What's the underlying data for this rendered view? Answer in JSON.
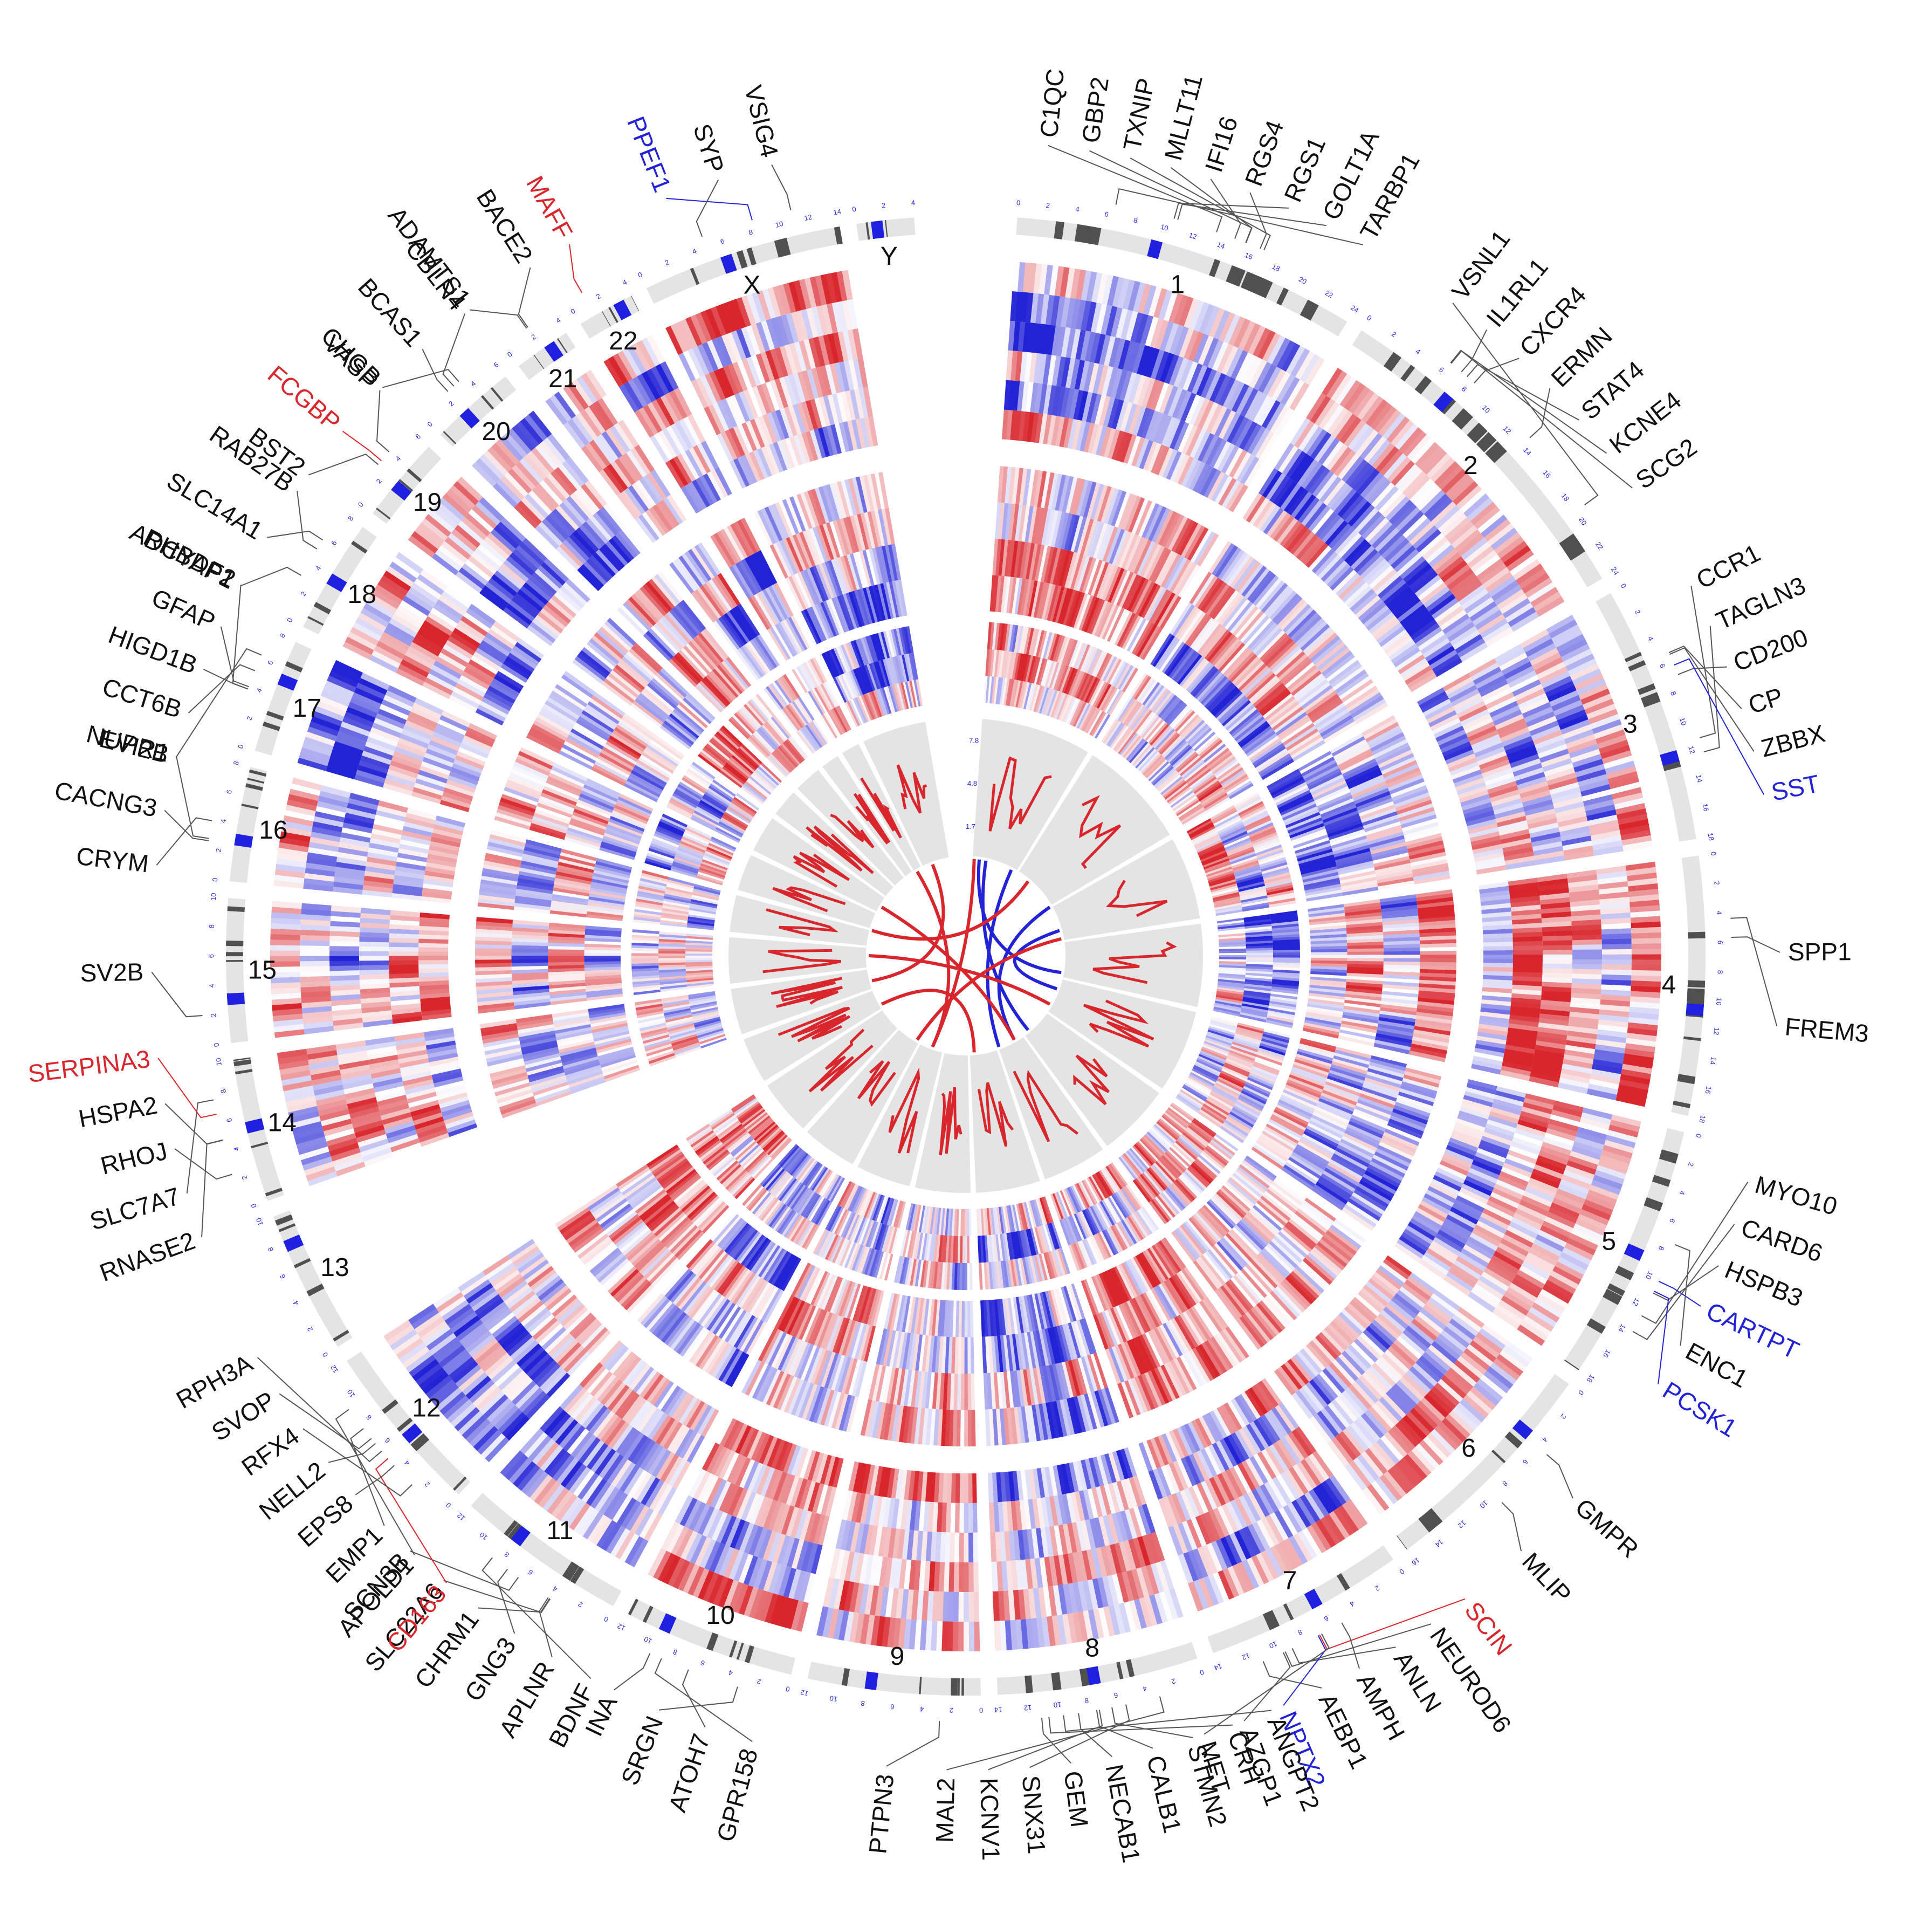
{
  "colors": {
    "up": "#d9262c",
    "down": "#2222d6",
    "neutral_gene": "#111111",
    "track_bg": "#e4e4e4",
    "band_dark": "#505050",
    "centromere": "#2020e0"
  },
  "chromosomes": [
    {
      "name": "1",
      "size": 24
    },
    {
      "name": "2",
      "size": 24
    },
    {
      "name": "3",
      "size": 18
    },
    {
      "name": "4",
      "size": 18
    },
    {
      "name": "5",
      "size": 18
    },
    {
      "name": "6",
      "size": 16
    },
    {
      "name": "7",
      "size": 14
    },
    {
      "name": "8",
      "size": 14
    },
    {
      "name": "9",
      "size": 12
    },
    {
      "name": "10",
      "size": 12
    },
    {
      "name": "11",
      "size": 12
    },
    {
      "name": "12",
      "size": 12
    },
    {
      "name": "13",
      "size": 10
    },
    {
      "name": "14",
      "size": 10
    },
    {
      "name": "15",
      "size": 10
    },
    {
      "name": "16",
      "size": 8
    },
    {
      "name": "17",
      "size": 8
    },
    {
      "name": "18",
      "size": 8
    },
    {
      "name": "19",
      "size": 6
    },
    {
      "name": "20",
      "size": 6
    },
    {
      "name": "21",
      "size": 4
    },
    {
      "name": "22",
      "size": 4
    },
    {
      "name": "X",
      "size": 14
    },
    {
      "name": "Y",
      "size": 4
    }
  ],
  "gene_labels": [
    {
      "chr": "1",
      "genes": [
        {
          "name": "C1QC",
          "dir": "none"
        },
        {
          "name": "GBP2",
          "dir": "none"
        },
        {
          "name": "TXNIP",
          "dir": "none"
        },
        {
          "name": "MLLT11",
          "dir": "none"
        },
        {
          "name": "IFI16",
          "dir": "none"
        },
        {
          "name": "RGS4",
          "dir": "none"
        },
        {
          "name": "RGS1",
          "dir": "none"
        },
        {
          "name": "GOLT1A",
          "dir": "none"
        },
        {
          "name": "TARBP1",
          "dir": "none"
        }
      ]
    },
    {
      "chr": "2",
      "genes": [
        {
          "name": "VSNL1",
          "dir": "none"
        },
        {
          "name": "IL1RL1",
          "dir": "none"
        },
        {
          "name": "CXCR4",
          "dir": "none"
        },
        {
          "name": "ERMN",
          "dir": "none"
        },
        {
          "name": "STAT4",
          "dir": "none"
        },
        {
          "name": "KCNE4",
          "dir": "none"
        },
        {
          "name": "SCG2",
          "dir": "none"
        }
      ]
    },
    {
      "chr": "3",
      "genes": [
        {
          "name": "CCR1",
          "dir": "none"
        },
        {
          "name": "TAGLN3",
          "dir": "none"
        },
        {
          "name": "CD200",
          "dir": "none"
        },
        {
          "name": "CP",
          "dir": "none"
        },
        {
          "name": "ZBBX",
          "dir": "none"
        },
        {
          "name": "SST",
          "dir": "down"
        }
      ]
    },
    {
      "chr": "4",
      "genes": [
        {
          "name": "SPP1",
          "dir": "none"
        },
        {
          "name": "FREM3",
          "dir": "none"
        }
      ]
    },
    {
      "chr": "5",
      "genes": [
        {
          "name": "MYO10",
          "dir": "none"
        },
        {
          "name": "CARD6",
          "dir": "none"
        },
        {
          "name": "HSPB3",
          "dir": "none"
        },
        {
          "name": "CARTPT",
          "dir": "down"
        },
        {
          "name": "ENC1",
          "dir": "none"
        },
        {
          "name": "PCSK1",
          "dir": "down"
        }
      ]
    },
    {
      "chr": "6",
      "genes": [
        {
          "name": "GMPR",
          "dir": "none"
        },
        {
          "name": "MLIP",
          "dir": "none"
        }
      ]
    },
    {
      "chr": "7",
      "genes": [
        {
          "name": "SCIN",
          "dir": "up"
        },
        {
          "name": "NEUROD6",
          "dir": "none"
        },
        {
          "name": "ANLN",
          "dir": "none"
        },
        {
          "name": "AMPH",
          "dir": "none"
        },
        {
          "name": "AEBP1",
          "dir": "none"
        },
        {
          "name": "NPTX2",
          "dir": "down"
        },
        {
          "name": "AZGP1",
          "dir": "none"
        },
        {
          "name": "MET",
          "dir": "none"
        }
      ]
    },
    {
      "chr": "8",
      "genes": [
        {
          "name": "ANGPT2",
          "dir": "none"
        },
        {
          "name": "CRH",
          "dir": "none"
        },
        {
          "name": "STMN2",
          "dir": "none"
        },
        {
          "name": "CALB1",
          "dir": "none"
        },
        {
          "name": "NECAB1",
          "dir": "none"
        },
        {
          "name": "GEM",
          "dir": "none"
        },
        {
          "name": "SNX31",
          "dir": "none"
        },
        {
          "name": "KCNV1",
          "dir": "none"
        },
        {
          "name": "MAL2",
          "dir": "none"
        }
      ]
    },
    {
      "chr": "9",
      "genes": [
        {
          "name": "PTPN3",
          "dir": "none"
        }
      ]
    },
    {
      "chr": "10",
      "genes": [
        {
          "name": "GPR158",
          "dir": "none"
        },
        {
          "name": "ATOH7",
          "dir": "none"
        },
        {
          "name": "SRGN",
          "dir": "none"
        },
        {
          "name": "INA",
          "dir": "none"
        }
      ]
    },
    {
      "chr": "11",
      "genes": [
        {
          "name": "BDNF",
          "dir": "none"
        },
        {
          "name": "APLNR",
          "dir": "none"
        },
        {
          "name": "GNG3",
          "dir": "none"
        },
        {
          "name": "CHRM1",
          "dir": "none"
        },
        {
          "name": "SLC22A6",
          "dir": "none"
        },
        {
          "name": "SCN3B",
          "dir": "none"
        }
      ]
    },
    {
      "chr": "12",
      "genes": [
        {
          "name": "CD163",
          "dir": "up"
        },
        {
          "name": "APOLD1",
          "dir": "none"
        },
        {
          "name": "EMP1",
          "dir": "none"
        },
        {
          "name": "EPS8",
          "dir": "none"
        },
        {
          "name": "NELL2",
          "dir": "none"
        },
        {
          "name": "RFX4",
          "dir": "none"
        },
        {
          "name": "SVOP",
          "dir": "none"
        },
        {
          "name": "RPH3A",
          "dir": "none"
        }
      ]
    },
    {
      "chr": "13",
      "genes": []
    },
    {
      "chr": "14",
      "genes": [
        {
          "name": "RNASE2",
          "dir": "none"
        },
        {
          "name": "SLC7A7",
          "dir": "none"
        },
        {
          "name": "RHOJ",
          "dir": "none"
        },
        {
          "name": "HSPA2",
          "dir": "none"
        },
        {
          "name": "SERPINA3",
          "dir": "up"
        }
      ]
    },
    {
      "chr": "15",
      "genes": [
        {
          "name": "SV2B",
          "dir": "none"
        }
      ]
    },
    {
      "chr": "16",
      "genes": [
        {
          "name": "CRYM",
          "dir": "none"
        },
        {
          "name": "CACNG3",
          "dir": "none"
        },
        {
          "name": "NUPR1",
          "dir": "none"
        }
      ]
    },
    {
      "chr": "17",
      "genes": [
        {
          "name": "EVI2B",
          "dir": "none"
        },
        {
          "name": "CCT6B",
          "dir": "none"
        },
        {
          "name": "HIGD1B",
          "dir": "none"
        },
        {
          "name": "GFAP",
          "dir": "none"
        },
        {
          "name": "RHBDF2",
          "dir": "none"
        }
      ]
    },
    {
      "chr": "18",
      "genes": [
        {
          "name": "ADCYAP1",
          "dir": "none"
        },
        {
          "name": "SLC14A1",
          "dir": "none"
        },
        {
          "name": "RAB27B",
          "dir": "none"
        }
      ]
    },
    {
      "chr": "19",
      "genes": [
        {
          "name": "BST2",
          "dir": "none"
        },
        {
          "name": "FCGBP",
          "dir": "up"
        },
        {
          "name": "VASP",
          "dir": "none"
        }
      ]
    },
    {
      "chr": "20",
      "genes": [
        {
          "name": "CHGB",
          "dir": "none"
        },
        {
          "name": "BCAS1",
          "dir": "none"
        },
        {
          "name": "CBLN4",
          "dir": "none"
        }
      ]
    },
    {
      "chr": "21",
      "genes": [
        {
          "name": "ADAMTS1",
          "dir": "none"
        },
        {
          "name": "BACE2",
          "dir": "none"
        }
      ]
    },
    {
      "chr": "22",
      "genes": [
        {
          "name": "MAFF",
          "dir": "up"
        }
      ]
    },
    {
      "chr": "X",
      "genes": [
        {
          "name": "PPEF1",
          "dir": "down"
        },
        {
          "name": "SYP",
          "dir": "none"
        },
        {
          "name": "VSIG4",
          "dir": "none"
        }
      ]
    },
    {
      "chr": "Y",
      "genes": []
    }
  ],
  "line_track": {
    "axis_ticks": [
      "7.8",
      "4.8",
      "1.7"
    ],
    "color": "#d9262c"
  },
  "links": {
    "up_color": "#d9262c",
    "down_color": "#2222d6"
  }
}
